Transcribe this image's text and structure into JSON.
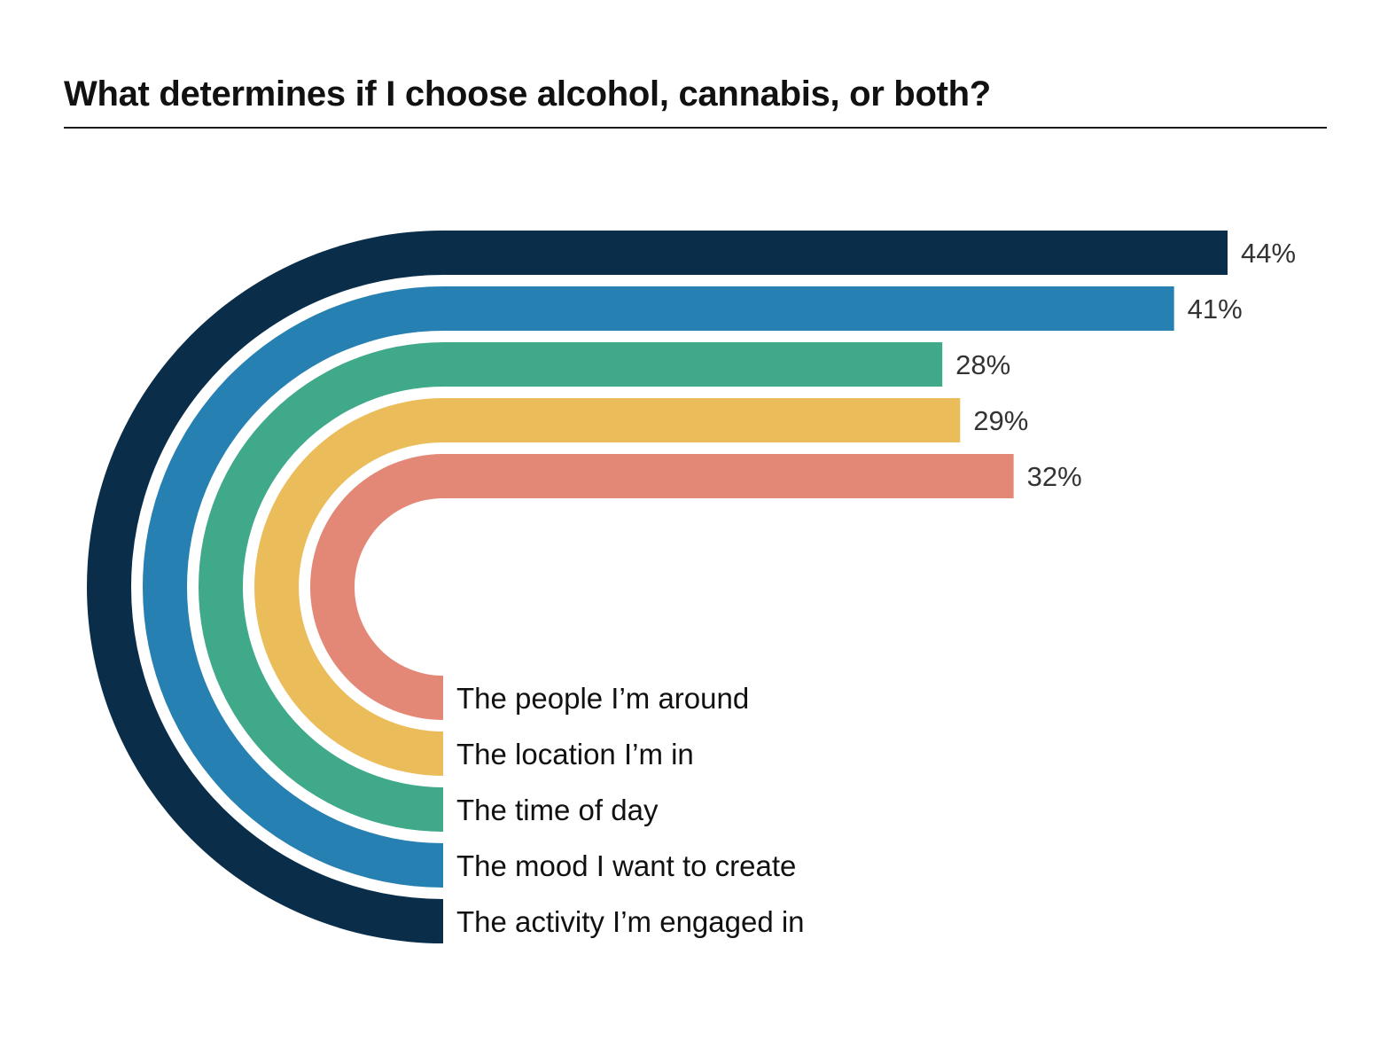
{
  "title": "What determines if I choose alcohol, cannabis, or both?",
  "chart_data": {
    "type": "bar",
    "title": "What determines if I choose alcohol, cannabis, or both?",
    "categories": [
      "The activity I’m engaged in",
      "The mood I want to create",
      "The time of day",
      "The location I’m in",
      "The people I’m around"
    ],
    "values": [
      44,
      41,
      28,
      29,
      32
    ],
    "value_labels": [
      "44%",
      "41%",
      "28%",
      "29%",
      "32%"
    ],
    "unit": "%",
    "colors": [
      "#0a2e4a",
      "#2680b2",
      "#3fa98a",
      "#ebbd5a",
      "#e38876"
    ],
    "grid": false,
    "legend": "none"
  }
}
